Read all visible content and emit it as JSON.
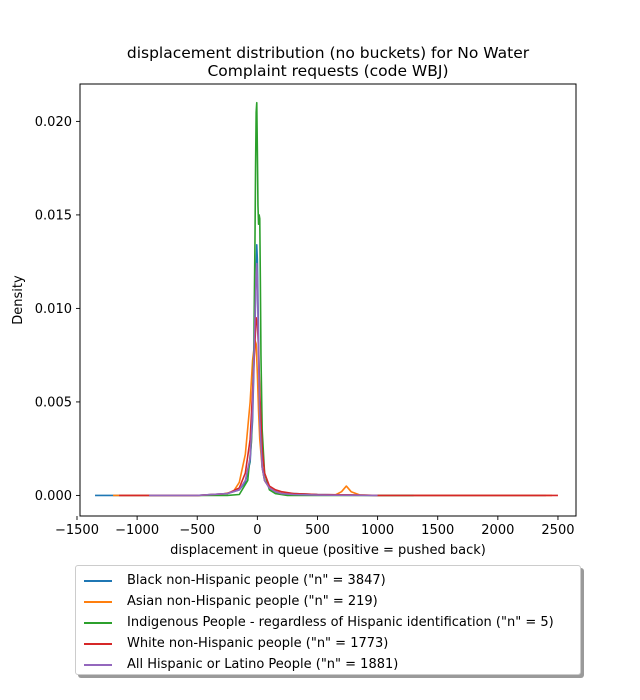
{
  "chart_data": {
    "type": "line",
    "title": "displacement distribution (no buckets)  for No Water\nComplaint requests (code WBJ)",
    "xlabel": "displacement in queue (positive = pushed back)",
    "ylabel": "Density",
    "xlim": [
      -1475,
      2650
    ],
    "ylim": [
      -0.0011,
      0.022
    ],
    "xticks": [
      -1500,
      -1000,
      -500,
      0,
      500,
      1000,
      1500,
      2000,
      2500
    ],
    "xtick_labels": [
      "−1500",
      "−1000",
      "−500",
      "0",
      "500",
      "1000",
      "1500",
      "2000",
      "2500"
    ],
    "yticks": [
      0.0,
      0.005,
      0.01,
      0.015,
      0.02
    ],
    "ytick_labels": [
      "0.000",
      "0.005",
      "0.010",
      "0.015",
      "0.020"
    ],
    "grid": false,
    "legend_position": "below",
    "series": [
      {
        "name": "Black non-Hispanic people (\"n\" = 3847)",
        "color": "#1f77b4",
        "x": [
          -1350,
          -1000,
          -500,
          -250,
          -150,
          -100,
          -60,
          -40,
          -20,
          -10,
          -5,
          0,
          5,
          10,
          20,
          40,
          60,
          100,
          150,
          200,
          300,
          500,
          1000,
          1500,
          2000,
          2400
        ],
        "y": [
          0,
          0,
          0,
          0.0001,
          0.0003,
          0.0007,
          0.0018,
          0.004,
          0.009,
          0.012,
          0.0134,
          0.0126,
          0.0105,
          0.0082,
          0.0045,
          0.0015,
          0.0008,
          0.0004,
          0.0002,
          0.0001,
          0.0001,
          5e-05,
          0,
          0,
          0,
          0
        ]
      },
      {
        "name": "Asian non-Hispanic people (\"n\" = 219)",
        "color": "#ff7f0e",
        "x": [
          -1200,
          -1000,
          -500,
          -300,
          -200,
          -150,
          -100,
          -60,
          -40,
          -20,
          -10,
          0,
          10,
          20,
          40,
          60,
          100,
          150,
          200,
          300,
          500,
          650,
          700,
          740,
          780,
          850,
          1000,
          1500,
          2000,
          2450
        ],
        "y": [
          0,
          0,
          0,
          5e-05,
          0.0002,
          0.0007,
          0.0022,
          0.005,
          0.0072,
          0.0083,
          0.0081,
          0.0065,
          0.0045,
          0.003,
          0.0015,
          0.0008,
          0.0004,
          0.0002,
          0.0001,
          5e-05,
          3e-05,
          3e-05,
          0.0002,
          0.0005,
          0.0002,
          3e-05,
          0,
          0,
          0,
          0
        ]
      },
      {
        "name": "Indigenous People - regardless of Hispanic identification (\"n\" = 5)",
        "color": "#2ca02c",
        "x": [
          -900,
          -500,
          -250,
          -150,
          -80,
          -50,
          -30,
          -20,
          -15,
          -10,
          -5,
          0,
          5,
          10,
          15,
          20,
          25,
          30,
          40,
          60,
          100,
          150,
          250,
          500,
          900,
          1300
        ],
        "y": [
          0,
          0,
          0,
          5e-05,
          0.0008,
          0.0028,
          0.0075,
          0.0135,
          0.0175,
          0.0205,
          0.021,
          0.0185,
          0.0155,
          0.0145,
          0.015,
          0.0148,
          0.0115,
          0.0075,
          0.0035,
          0.0012,
          0.0003,
          0.0001,
          0,
          0,
          0,
          0
        ]
      },
      {
        "name": "White non-Hispanic people (\"n\" = 1773)",
        "color": "#d62728",
        "x": [
          -1150,
          -1000,
          -500,
          -250,
          -150,
          -100,
          -60,
          -40,
          -20,
          -10,
          0,
          10,
          20,
          40,
          60,
          100,
          150,
          200,
          300,
          500,
          800,
          1000,
          1500,
          2000,
          2500
        ],
        "y": [
          0,
          0,
          0,
          0.0001,
          0.0004,
          0.0012,
          0.003,
          0.0055,
          0.0082,
          0.0095,
          0.0092,
          0.0078,
          0.0055,
          0.0025,
          0.0012,
          0.0005,
          0.0003,
          0.0002,
          0.0001,
          5e-05,
          3e-05,
          0,
          0,
          0,
          0
        ]
      },
      {
        "name": "All Hispanic or Latino People (\"n\" = 1881)",
        "color": "#9467bd",
        "x": [
          -900,
          -500,
          -250,
          -150,
          -100,
          -60,
          -40,
          -20,
          -10,
          -5,
          0,
          5,
          10,
          20,
          40,
          60,
          100,
          150,
          200,
          300,
          500,
          1000
        ],
        "y": [
          0,
          0,
          0.0001,
          0.0003,
          0.0008,
          0.002,
          0.0045,
          0.0095,
          0.0118,
          0.0124,
          0.0115,
          0.0095,
          0.0075,
          0.004,
          0.0015,
          0.0008,
          0.0004,
          0.0002,
          0.0001,
          5e-05,
          2e-05,
          0
        ]
      }
    ]
  }
}
